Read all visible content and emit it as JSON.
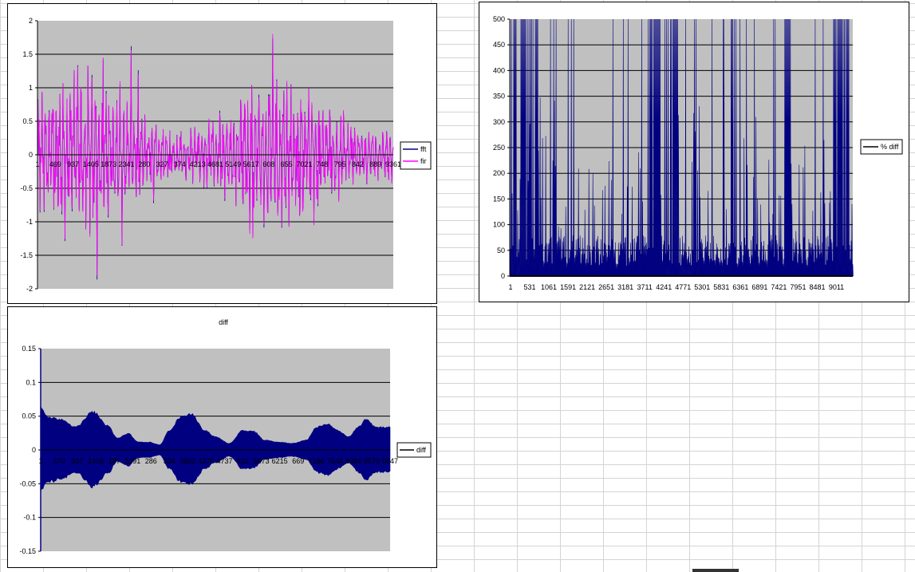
{
  "colors": {
    "plot_bg": "#c0c0c0",
    "navy": "#000080",
    "magenta": "#ff00ff",
    "black": "#000000"
  },
  "chart_data": [
    {
      "type": "line",
      "title": "",
      "legend_position": "right",
      "series": [
        {
          "name": "fft",
          "color": "#000080"
        },
        {
          "name": "fir",
          "color": "#ff00ff"
        }
      ],
      "ylim": [
        -2,
        2
      ],
      "yticks": [
        "2",
        "1.5",
        "1",
        "0.5",
        "0",
        "-0.5",
        "-1",
        "-1.5",
        "-2"
      ],
      "xtick_labels": [
        "1",
        "469",
        "937",
        "1405",
        "1873",
        "2341",
        "280",
        "327",
        "374",
        "4213",
        "4681",
        "5149",
        "5617",
        "608",
        "655",
        "7021",
        "748",
        "795",
        "842",
        "889",
        "9361"
      ],
      "grid": true
    },
    {
      "type": "area",
      "title": "",
      "legend_position": "right",
      "series": [
        {
          "name": "% diff",
          "color": "#000080"
        }
      ],
      "ylim": [
        0,
        500
      ],
      "yticks": [
        "500",
        "450",
        "400",
        "350",
        "300",
        "250",
        "200",
        "150",
        "100",
        "50",
        "0"
      ],
      "xtick_labels": [
        "1",
        "531",
        "1061",
        "1591",
        "2121",
        "2651",
        "3181",
        "3711",
        "4241",
        "4771",
        "5301",
        "5831",
        "6361",
        "6891",
        "7421",
        "7951",
        "8481",
        "9011"
      ],
      "grid": true
    },
    {
      "type": "area",
      "title": "diff",
      "legend_position": "right",
      "series": [
        {
          "name": "diff",
          "color": "#000080"
        }
      ],
      "ylim": [
        -0.15,
        0.15
      ],
      "yticks": [
        "0.15",
        "0.1",
        "0.05",
        "0",
        "-0.05",
        "-0.1",
        "-0.15"
      ],
      "xtick_labels": [
        "1",
        "470",
        "937",
        "1405",
        "187",
        "2391",
        "286",
        "334",
        "3802",
        "4270",
        "4737",
        "521",
        "5673",
        "6215",
        "669",
        "7166",
        "7644",
        "8084",
        "8579",
        "9047"
      ],
      "envelope_x": [
        0,
        0.02,
        0.06,
        0.1,
        0.15,
        0.19,
        0.22,
        0.25,
        0.28,
        0.31,
        0.34,
        0.37,
        0.4,
        0.43,
        0.47,
        0.5,
        0.54,
        0.58,
        0.61,
        0.64,
        0.68,
        0.72,
        0.76,
        0.79,
        0.82,
        0.85,
        0.88,
        0.91,
        0.93,
        0.96,
        1.0
      ],
      "envelope_y": [
        0.065,
        0.05,
        0.047,
        0.035,
        0.058,
        0.038,
        0.018,
        0.025,
        0.012,
        0.012,
        0.008,
        0.03,
        0.05,
        0.055,
        0.03,
        0.02,
        0.01,
        0.03,
        0.028,
        0.015,
        0.012,
        0.01,
        0.015,
        0.035,
        0.04,
        0.03,
        0.02,
        0.035,
        0.048,
        0.035,
        0.035
      ],
      "grid": true
    }
  ]
}
